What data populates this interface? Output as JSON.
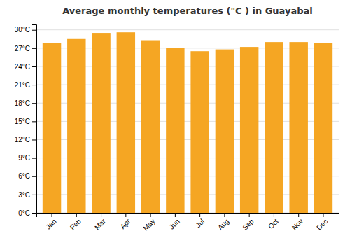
{
  "chart_data": {
    "type": "bar",
    "title": "Average monthly temperatures (°C ) in Guayabal",
    "categories": [
      "Jan",
      "Feb",
      "Mar",
      "Apr",
      "May",
      "Jun",
      "Jul",
      "Aug",
      "Sep",
      "Oct",
      "Nov",
      "Dec"
    ],
    "values": [
      27.8,
      28.5,
      29.5,
      29.6,
      28.3,
      27.0,
      26.5,
      26.8,
      27.2,
      28.0,
      28.0,
      27.8
    ],
    "color": "#F5A623",
    "ylim": [
      0,
      31
    ],
    "yticks": [
      {
        "value": 0,
        "label": "0°C"
      },
      {
        "value": 3,
        "label": "3°C"
      },
      {
        "value": 6,
        "label": "6°C"
      },
      {
        "value": 9,
        "label": "9°C"
      },
      {
        "value": 12,
        "label": "12°C"
      },
      {
        "value": 15,
        "label": "15°C"
      },
      {
        "value": 18,
        "label": "18°C"
      },
      {
        "value": 21,
        "label": "21°C"
      },
      {
        "value": 24,
        "label": "24°C"
      },
      {
        "value": 27,
        "label": "27°C"
      },
      {
        "value": 30,
        "label": "30°C"
      }
    ],
    "grid": true
  }
}
